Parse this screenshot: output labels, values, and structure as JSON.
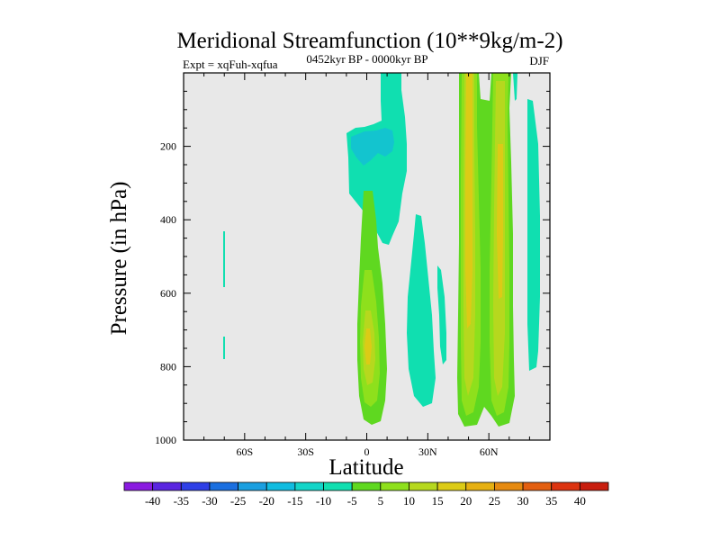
{
  "chart_data": {
    "type": "contour",
    "title": "Meridional Streamfunction (10**9kg/m-2)",
    "subtitle_left": "Expt = xqFuh-xqfua",
    "subtitle_center": "0452kyr BP - 0000kyr BP",
    "subtitle_right": "DJF",
    "xlabel": "Latitude",
    "ylabel": "Pressure (in hPa)",
    "xlim": [
      -90,
      90
    ],
    "ylim": [
      1000,
      0
    ],
    "x_ticks": [
      {
        "value": -60,
        "label": "60S"
      },
      {
        "value": -30,
        "label": "30S"
      },
      {
        "value": 0,
        "label": "0"
      },
      {
        "value": 30,
        "label": "30N"
      },
      {
        "value": 60,
        "label": "60N"
      }
    ],
    "y_ticks": [
      {
        "value": 200,
        "label": "200"
      },
      {
        "value": 400,
        "label": "400"
      },
      {
        "value": 600,
        "label": "600"
      },
      {
        "value": 800,
        "label": "800"
      },
      {
        "value": 1000,
        "label": "1000"
      }
    ],
    "colorbar": {
      "labels": [
        "-40",
        "-35",
        "-30",
        "-25",
        "-20",
        "-15",
        "-10",
        "-5",
        "5",
        "10",
        "15",
        "20",
        "25",
        "30",
        "35",
        "40"
      ],
      "colors": [
        "#8a1be0",
        "#5a25e0",
        "#2e3fe6",
        "#1a6fe0",
        "#1a9fe0",
        "#10bce0",
        "#13d5c8",
        "#10dfb0",
        "#5fd820",
        "#8ee01c",
        "#b6d81e",
        "#dccb16",
        "#e6b012",
        "#e68a10",
        "#e35f10",
        "#dc3410",
        "#c81e0e"
      ],
      "zero_band_color": "#e8e8e8"
    },
    "features": [
      {
        "name": "equatorial-upper-negative",
        "kind": "negative",
        "max_abs": 12,
        "lat_range": [
          -10,
          12
        ],
        "p_range": [
          0,
          290
        ]
      },
      {
        "name": "equatorial-lower-positive",
        "kind": "positive",
        "max": 20,
        "lat_range": [
          -4,
          6
        ],
        "p_range": [
          330,
          950
        ]
      },
      {
        "name": "subtropical-negative-cell",
        "kind": "negative",
        "max_abs": 7,
        "lat_range": [
          22,
          38
        ],
        "p_range": [
          450,
          900
        ]
      },
      {
        "name": "midlatitude-positive-jet",
        "kind": "positive",
        "max": 22,
        "lat_range": [
          45,
          68
        ],
        "p_range": [
          0,
          960
        ]
      },
      {
        "name": "polar-negative",
        "kind": "negative",
        "max_abs": 6,
        "lat_range": [
          79,
          86
        ],
        "p_range": [
          50,
          820
        ]
      },
      {
        "name": "southern-weak-negative",
        "kind": "negative",
        "max_abs": 6,
        "lat_range": [
          -70,
          -69
        ],
        "p_range": [
          420,
          780
        ]
      }
    ]
  }
}
